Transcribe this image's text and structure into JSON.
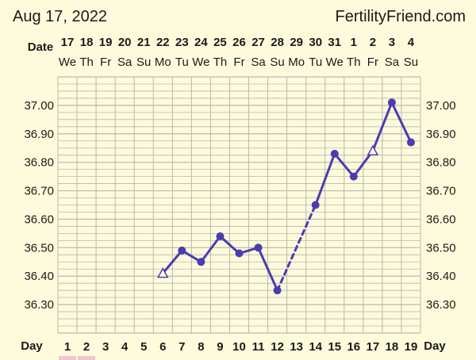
{
  "header": {
    "date": "Aug 17, 2022",
    "site": "FertilityFriend.com"
  },
  "row_labels": {
    "date": "Date",
    "day": "Day"
  },
  "colors": {
    "background": "#fdfbdc",
    "grid": "#b8b8b0",
    "series": "#4b3cb0",
    "text": "#1a1a1a",
    "highlight": "#f2c4d2"
  },
  "chart_data": {
    "type": "line",
    "title": "",
    "xlabel": "Day",
    "ylabel": "",
    "dates": [
      "17",
      "18",
      "19",
      "20",
      "21",
      "22",
      "23",
      "24",
      "25",
      "26",
      "27",
      "28",
      "29",
      "30",
      "31",
      "1",
      "2",
      "3",
      "4"
    ],
    "weekdays": [
      "We",
      "Th",
      "Fr",
      "Sa",
      "Su",
      "Mo",
      "Tu",
      "We",
      "Th",
      "Fr",
      "Sa",
      "Su",
      "Mo",
      "Tu",
      "We",
      "Th",
      "Fr",
      "Sa",
      "Su"
    ],
    "days": [
      "1",
      "2",
      "3",
      "4",
      "5",
      "6",
      "7",
      "8",
      "9",
      "10",
      "11",
      "12",
      "13",
      "14",
      "15",
      "16",
      "17",
      "18",
      "19"
    ],
    "ylim": [
      36.2,
      37.1
    ],
    "yticks": [
      "37.00",
      "36.90",
      "36.80",
      "36.70",
      "36.60",
      "36.50",
      "36.40",
      "36.30"
    ],
    "grid": true,
    "series": [
      {
        "values": [
          null,
          null,
          null,
          null,
          null,
          36.41,
          36.49,
          36.45,
          36.54,
          36.48,
          36.5,
          36.35,
          null,
          36.65,
          36.83,
          36.75,
          36.84,
          37.01,
          36.87
        ],
        "markers": [
          "",
          "",
          "",
          "",
          "",
          "triangle",
          "circle",
          "circle",
          "circle",
          "circle",
          "circle",
          "circle",
          "",
          "circle",
          "circle",
          "circle",
          "triangle",
          "circle",
          "circle"
        ]
      }
    ],
    "dashed_segments": [
      [
        12,
        14
      ]
    ],
    "highlighted_days": [
      1,
      2
    ]
  }
}
